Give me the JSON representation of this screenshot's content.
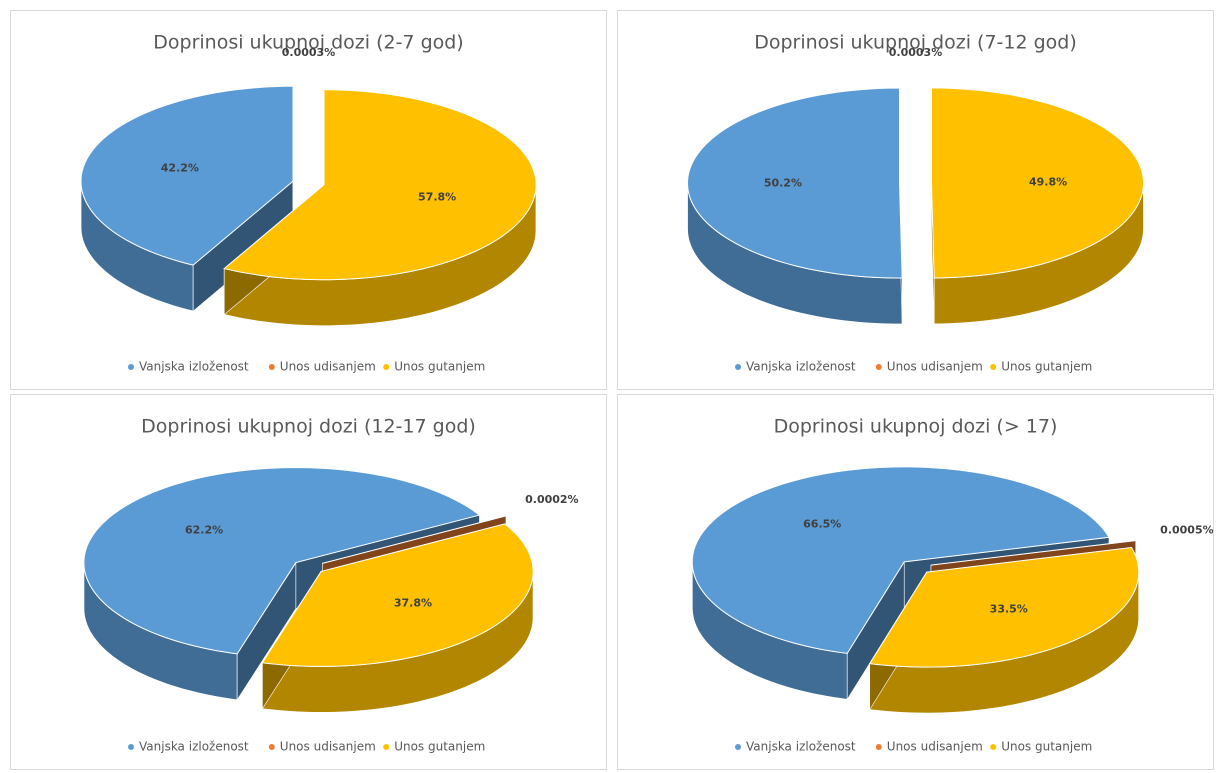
{
  "chart_data": [
    {
      "type": "pie",
      "title": "Doprinosi ukupnoj dozi (2-7 god)",
      "categories": [
        "Vanjska izloženost",
        "Unos udisanjem",
        "Unos gutanjem"
      ],
      "values": [
        42.2,
        0.0003,
        57.8
      ],
      "value_labels": [
        "42.2%",
        "0.0003%",
        "57.8%"
      ],
      "colors": [
        "#5b9bd5",
        "#ed7d31",
        "#ffc000"
      ],
      "legend": "bottom"
    },
    {
      "type": "pie",
      "title": "Doprinosi ukupnoj dozi (7-12 god)",
      "categories": [
        "Vanjska izloženost",
        "Unos udisanjem",
        "Unos gutanjem"
      ],
      "values": [
        50.2,
        0.0003,
        49.8
      ],
      "value_labels": [
        "50.2%",
        "0.0003%",
        "49.8%"
      ],
      "colors": [
        "#5b9bd5",
        "#ed7d31",
        "#ffc000"
      ],
      "legend": "bottom"
    },
    {
      "type": "pie",
      "title": "Doprinosi ukupnoj dozi (12-17 god)",
      "categories": [
        "Vanjska izloženost",
        "Unos udisanjem",
        "Unos gutanjem"
      ],
      "values": [
        62.2,
        0.0002,
        37.8
      ],
      "value_labels": [
        "62.2%",
        "0.0002%",
        "37.8%"
      ],
      "colors": [
        "#5b9bd5",
        "#ed7d31",
        "#ffc000"
      ],
      "legend": "bottom"
    },
    {
      "type": "pie",
      "title": "Doprinosi ukupnoj dozi (> 17)",
      "categories": [
        "Vanjska izloženost",
        "Unos udisanjem",
        "Unos gutanjem"
      ],
      "values": [
        66.5,
        0.0005,
        33.5
      ],
      "value_labels": [
        "66.5%",
        "0.0005%",
        "33.5%"
      ],
      "colors": [
        "#5b9bd5",
        "#ed7d31",
        "#ffc000"
      ],
      "legend": "bottom"
    }
  ]
}
